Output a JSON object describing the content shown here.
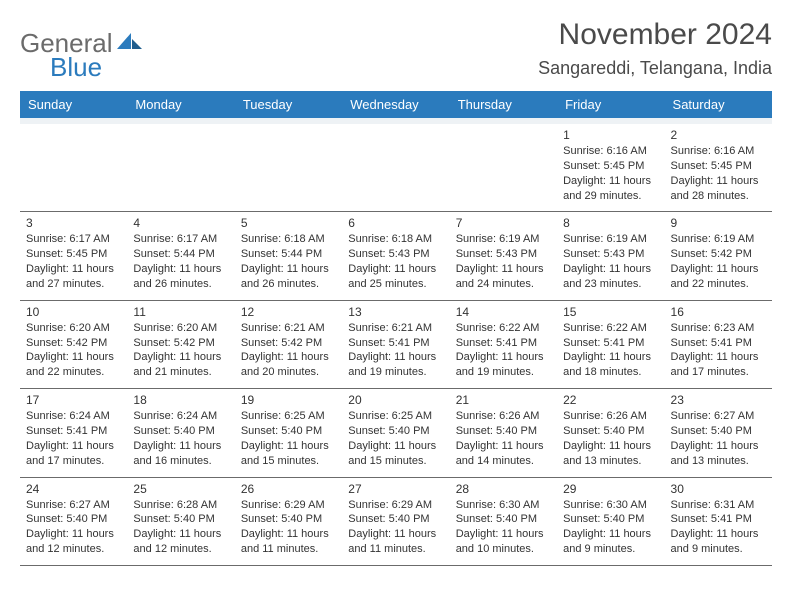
{
  "logo": {
    "part1": "General",
    "part2": "Blue"
  },
  "title": "November 2024",
  "location": "Sangareddi, Telangana, India",
  "colors": {
    "header_bg": "#2b7bbd",
    "header_text": "#ffffff",
    "spacer_bg": "#eef2f5",
    "rule": "#6b6b6b",
    "logo_gray": "#6b6b6b",
    "logo_blue": "#2b7bbd",
    "text": "#333333",
    "title_text": "#4a4a4a"
  },
  "day_headers": [
    "Sunday",
    "Monday",
    "Tuesday",
    "Wednesday",
    "Thursday",
    "Friday",
    "Saturday"
  ],
  "weeks": [
    [
      null,
      null,
      null,
      null,
      null,
      {
        "n": "1",
        "sr": "6:16 AM",
        "ss": "5:45 PM",
        "dl": "11 hours and 29 minutes."
      },
      {
        "n": "2",
        "sr": "6:16 AM",
        "ss": "5:45 PM",
        "dl": "11 hours and 28 minutes."
      }
    ],
    [
      {
        "n": "3",
        "sr": "6:17 AM",
        "ss": "5:45 PM",
        "dl": "11 hours and 27 minutes."
      },
      {
        "n": "4",
        "sr": "6:17 AM",
        "ss": "5:44 PM",
        "dl": "11 hours and 26 minutes."
      },
      {
        "n": "5",
        "sr": "6:18 AM",
        "ss": "5:44 PM",
        "dl": "11 hours and 26 minutes."
      },
      {
        "n": "6",
        "sr": "6:18 AM",
        "ss": "5:43 PM",
        "dl": "11 hours and 25 minutes."
      },
      {
        "n": "7",
        "sr": "6:19 AM",
        "ss": "5:43 PM",
        "dl": "11 hours and 24 minutes."
      },
      {
        "n": "8",
        "sr": "6:19 AM",
        "ss": "5:43 PM",
        "dl": "11 hours and 23 minutes."
      },
      {
        "n": "9",
        "sr": "6:19 AM",
        "ss": "5:42 PM",
        "dl": "11 hours and 22 minutes."
      }
    ],
    [
      {
        "n": "10",
        "sr": "6:20 AM",
        "ss": "5:42 PM",
        "dl": "11 hours and 22 minutes."
      },
      {
        "n": "11",
        "sr": "6:20 AM",
        "ss": "5:42 PM",
        "dl": "11 hours and 21 minutes."
      },
      {
        "n": "12",
        "sr": "6:21 AM",
        "ss": "5:42 PM",
        "dl": "11 hours and 20 minutes."
      },
      {
        "n": "13",
        "sr": "6:21 AM",
        "ss": "5:41 PM",
        "dl": "11 hours and 19 minutes."
      },
      {
        "n": "14",
        "sr": "6:22 AM",
        "ss": "5:41 PM",
        "dl": "11 hours and 19 minutes."
      },
      {
        "n": "15",
        "sr": "6:22 AM",
        "ss": "5:41 PM",
        "dl": "11 hours and 18 minutes."
      },
      {
        "n": "16",
        "sr": "6:23 AM",
        "ss": "5:41 PM",
        "dl": "11 hours and 17 minutes."
      }
    ],
    [
      {
        "n": "17",
        "sr": "6:24 AM",
        "ss": "5:41 PM",
        "dl": "11 hours and 17 minutes."
      },
      {
        "n": "18",
        "sr": "6:24 AM",
        "ss": "5:40 PM",
        "dl": "11 hours and 16 minutes."
      },
      {
        "n": "19",
        "sr": "6:25 AM",
        "ss": "5:40 PM",
        "dl": "11 hours and 15 minutes."
      },
      {
        "n": "20",
        "sr": "6:25 AM",
        "ss": "5:40 PM",
        "dl": "11 hours and 15 minutes."
      },
      {
        "n": "21",
        "sr": "6:26 AM",
        "ss": "5:40 PM",
        "dl": "11 hours and 14 minutes."
      },
      {
        "n": "22",
        "sr": "6:26 AM",
        "ss": "5:40 PM",
        "dl": "11 hours and 13 minutes."
      },
      {
        "n": "23",
        "sr": "6:27 AM",
        "ss": "5:40 PM",
        "dl": "11 hours and 13 minutes."
      }
    ],
    [
      {
        "n": "24",
        "sr": "6:27 AM",
        "ss": "5:40 PM",
        "dl": "11 hours and 12 minutes."
      },
      {
        "n": "25",
        "sr": "6:28 AM",
        "ss": "5:40 PM",
        "dl": "11 hours and 12 minutes."
      },
      {
        "n": "26",
        "sr": "6:29 AM",
        "ss": "5:40 PM",
        "dl": "11 hours and 11 minutes."
      },
      {
        "n": "27",
        "sr": "6:29 AM",
        "ss": "5:40 PM",
        "dl": "11 hours and 11 minutes."
      },
      {
        "n": "28",
        "sr": "6:30 AM",
        "ss": "5:40 PM",
        "dl": "11 hours and 10 minutes."
      },
      {
        "n": "29",
        "sr": "6:30 AM",
        "ss": "5:40 PM",
        "dl": "11 hours and 9 minutes."
      },
      {
        "n": "30",
        "sr": "6:31 AM",
        "ss": "5:41 PM",
        "dl": "11 hours and 9 minutes."
      }
    ]
  ],
  "labels": {
    "sunrise": "Sunrise:",
    "sunset": "Sunset:",
    "daylight": "Daylight:"
  }
}
